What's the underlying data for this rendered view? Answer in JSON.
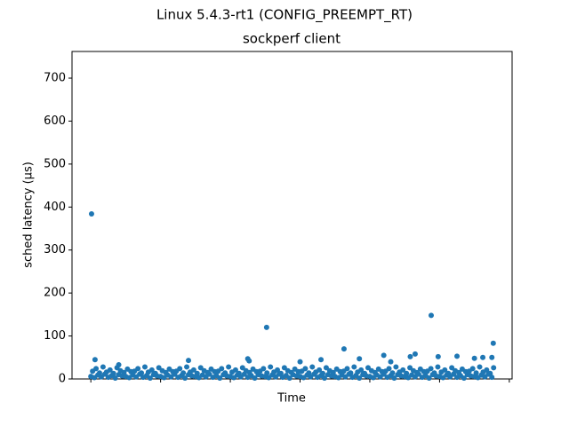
{
  "chart_data": {
    "type": "scatter",
    "title": "Linux 5.4.3-rt1 (CONFIG_PREEMPT_RT)",
    "subtitle": "sockperf client",
    "x_label": "Time",
    "y_label": "sched latency (µs)",
    "color": "#1f77b4",
    "xlim": [
      -0.27,
      6.04
    ],
    "xticks": [
      0,
      1,
      2,
      3,
      4,
      5,
      6
    ],
    "ylim": [
      0,
      762
    ],
    "yticks": [
      0,
      100,
      200,
      300,
      400,
      500,
      600,
      700
    ],
    "x": [
      0,
      0.05,
      0.1,
      0.15,
      0.2,
      0.25,
      0.3,
      0.35,
      0.4,
      0.45,
      0.5,
      0.55,
      0.6,
      0.65,
      0.7,
      0.75,
      0.8,
      0.85,
      0.9,
      0.95,
      1,
      1.05,
      1.1,
      1.15,
      1.2,
      1.25,
      1.3,
      1.35,
      1.4,
      1.45,
      1.5,
      1.55,
      1.6,
      1.65,
      1.7,
      1.75,
      1.8,
      1.85,
      1.9,
      1.95,
      2,
      2.05,
      2.1,
      2.15,
      2.2,
      2.25,
      2.3,
      2.35,
      2.4,
      2.45,
      2.5,
      2.55,
      2.6,
      2.65,
      2.7,
      2.75,
      2.8,
      2.85,
      2.9,
      2.95,
      3,
      3.05,
      3.1,
      3.15,
      3.2,
      3.25,
      3.3,
      3.35,
      3.4,
      3.45,
      3.5,
      3.55,
      3.6,
      3.65,
      3.7,
      3.75,
      3.8,
      3.85,
      3.9,
      3.95,
      4,
      4.05,
      4.1,
      4.15,
      4.2,
      4.25,
      4.3,
      4.35,
      4.4,
      4.45,
      4.5,
      4.55,
      4.6,
      4.65,
      4.7,
      4.75,
      4.8,
      4.85,
      4.9,
      4.95,
      5,
      5.05,
      5.1,
      5.15,
      5.2,
      5.25,
      5.3,
      5.35,
      5.4,
      5.45,
      5.5,
      5.55,
      5.6,
      5.65,
      5.7,
      5.75,
      0.025,
      0.075,
      0.125,
      0.175,
      0.225,
      0.275,
      0.325,
      0.375,
      0.425,
      0.475,
      0.525,
      0.575,
      0.625,
      0.675,
      0.725,
      0.775,
      0.825,
      0.875,
      0.925,
      0.975,
      1.025,
      1.075,
      1.125,
      1.175,
      1.225,
      1.275,
      1.325,
      1.375,
      1.425,
      1.475,
      1.525,
      1.575,
      1.625,
      1.675,
      1.725,
      1.775,
      1.825,
      1.875,
      1.925,
      1.975,
      2.025,
      2.075,
      2.125,
      2.175,
      2.225,
      2.275,
      2.325,
      2.375,
      2.425,
      2.475,
      2.525,
      2.575,
      2.625,
      2.675,
      2.725,
      2.775,
      2.825,
      2.875,
      2.925,
      2.975,
      3.025,
      3.075,
      3.125,
      3.175,
      3.225,
      3.275,
      3.325,
      3.375,
      3.425,
      3.475,
      3.525,
      3.575,
      3.625,
      3.675,
      3.725,
      3.775,
      3.825,
      3.875,
      3.925,
      3.975,
      4.025,
      4.075,
      4.125,
      4.175,
      4.225,
      4.275,
      4.325,
      4.375,
      4.425,
      4.475,
      4.525,
      4.575,
      4.625,
      4.675,
      4.725,
      4.775,
      4.825,
      4.875,
      4.925,
      4.975,
      5.025,
      5.075,
      5.125,
      5.175,
      5.225,
      5.275,
      5.325,
      5.375,
      5.425,
      5.475,
      5.525,
      5.575,
      5.625,
      5.675,
      5.725,
      5.775,
      0.01,
      0.06,
      0.4,
      1.4,
      2.25,
      2.27,
      2.52,
      3.0,
      3.3,
      3.63,
      3.85,
      4.2,
      4.3,
      4.58,
      4.65,
      4.88,
      4.98,
      5.25,
      5.5,
      5.62,
      5.75,
      5.77
    ],
    "values": [
      6,
      3,
      9,
      5,
      11,
      4,
      8,
      2,
      10,
      7,
      6,
      3,
      9,
      5,
      11,
      4,
      8,
      2,
      10,
      7,
      6,
      3,
      9,
      5,
      11,
      4,
      8,
      2,
      10,
      7,
      6,
      3,
      9,
      5,
      11,
      4,
      8,
      2,
      10,
      7,
      6,
      3,
      9,
      5,
      11,
      4,
      8,
      2,
      10,
      7,
      6,
      3,
      9,
      5,
      11,
      4,
      8,
      2,
      10,
      7,
      6,
      3,
      9,
      5,
      11,
      4,
      8,
      2,
      10,
      7,
      6,
      3,
      9,
      5,
      11,
      4,
      8,
      2,
      10,
      7,
      6,
      3,
      9,
      5,
      11,
      4,
      8,
      2,
      10,
      7,
      6,
      3,
      9,
      5,
      11,
      4,
      8,
      2,
      10,
      7,
      6,
      3,
      9,
      5,
      11,
      4,
      8,
      2,
      10,
      7,
      6,
      3,
      9,
      5,
      11,
      4,
      18,
      24,
      14,
      28,
      16,
      21,
      13,
      26,
      19,
      15,
      23,
      17,
      18,
      24,
      14,
      28,
      16,
      21,
      13,
      26,
      19,
      15,
      23,
      17,
      18,
      24,
      14,
      28,
      16,
      21,
      13,
      26,
      19,
      15,
      23,
      17,
      18,
      24,
      14,
      28,
      16,
      21,
      13,
      26,
      19,
      15,
      23,
      17,
      18,
      24,
      14,
      28,
      16,
      21,
      13,
      26,
      19,
      15,
      23,
      17,
      18,
      24,
      14,
      28,
      16,
      21,
      13,
      26,
      19,
      15,
      23,
      17,
      18,
      24,
      14,
      28,
      16,
      21,
      13,
      26,
      19,
      15,
      23,
      17,
      18,
      24,
      14,
      28,
      16,
      21,
      13,
      26,
      19,
      15,
      23,
      17,
      18,
      24,
      14,
      28,
      16,
      21,
      13,
      26,
      19,
      15,
      23,
      17,
      18,
      24,
      14,
      28,
      16,
      21,
      13,
      26,
      384,
      45,
      33,
      43,
      47,
      42,
      120,
      40,
      45,
      70,
      47,
      55,
      40,
      52,
      58,
      148,
      52,
      53,
      48,
      50,
      50,
      83
    ]
  }
}
